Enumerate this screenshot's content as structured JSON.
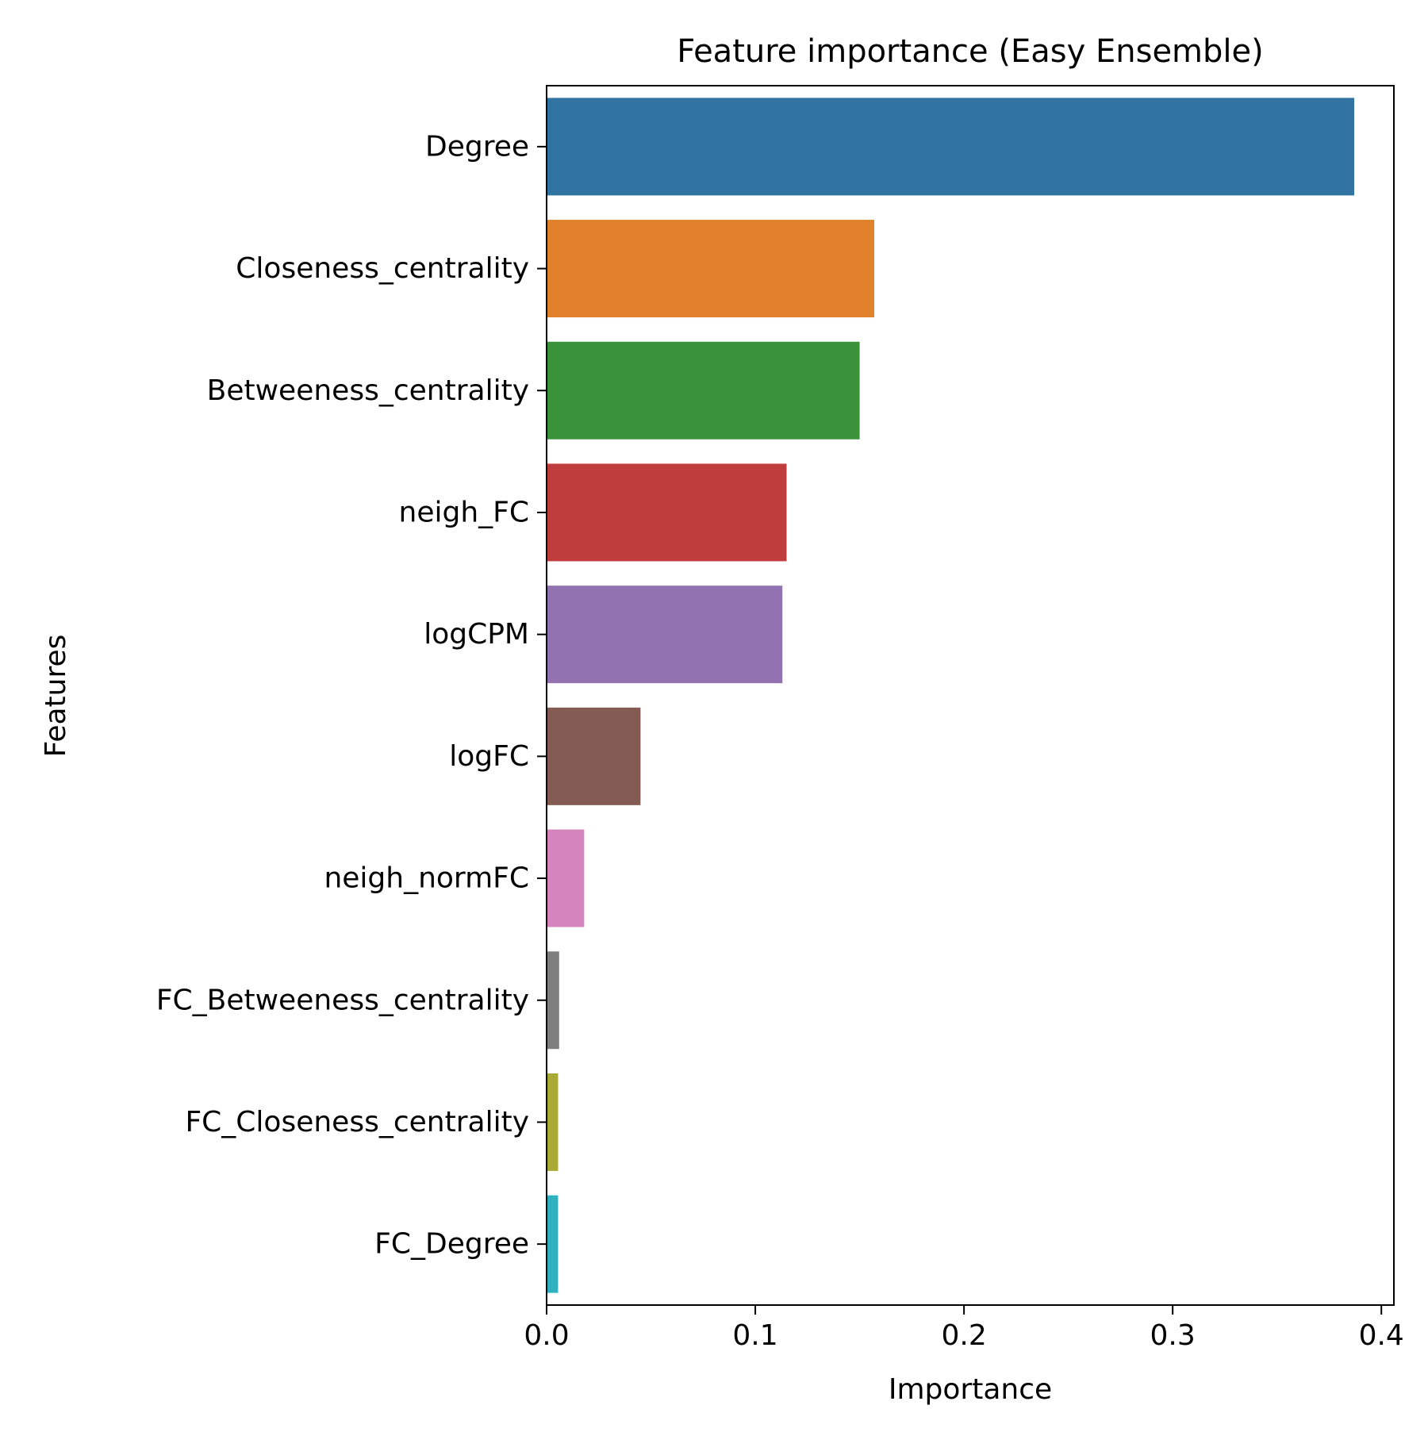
{
  "chart_data": {
    "type": "bar",
    "orientation": "horizontal",
    "title": "Feature importance (Easy Ensemble)",
    "xlabel": "Importance",
    "ylabel": "Features",
    "xlim": [
      0,
      0.406
    ],
    "xticks": [
      0.0,
      0.1,
      0.2,
      0.3,
      0.4
    ],
    "xtick_labels": [
      "0.0",
      "0.1",
      "0.2",
      "0.3",
      "0.4"
    ],
    "grid": false,
    "legend": "none",
    "categories": [
      "Degree",
      "Closeness_centrality",
      "Betweeness_centrality",
      "neigh_FC",
      "logCPM",
      "logFC",
      "neigh_normFC",
      "FC_Betweeness_centrality",
      "FC_Closeness_centrality",
      "FC_Degree"
    ],
    "values": [
      0.387,
      0.157,
      0.15,
      0.115,
      0.113,
      0.045,
      0.018,
      0.006,
      0.0055,
      0.0055
    ],
    "colors": [
      "#3274a1",
      "#e1812c",
      "#3a923a",
      "#c03d3e",
      "#9372b2",
      "#845b53",
      "#d684bd",
      "#7f7f7f",
      "#a9aa35",
      "#2fb1c0"
    ]
  }
}
